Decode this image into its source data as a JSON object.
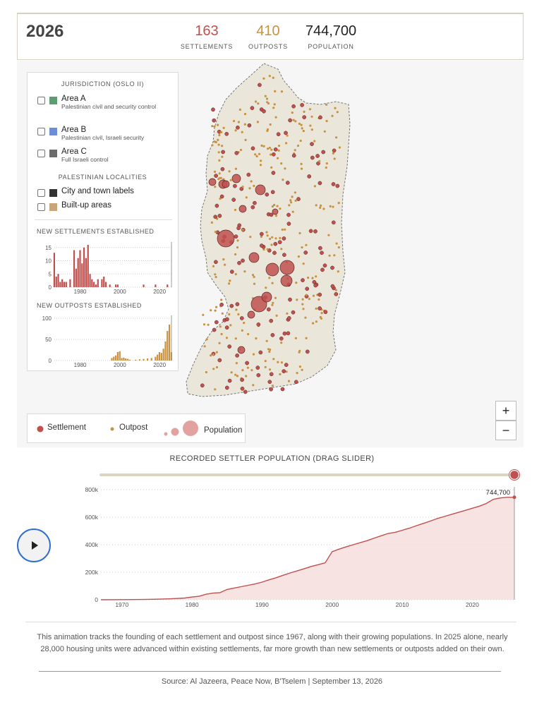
{
  "header": {
    "year": "2026",
    "stats": [
      {
        "value": "163",
        "label": "SETTLEMENTS",
        "color": "#c0504d"
      },
      {
        "value": "410",
        "label": "OUTPOSTS",
        "color": "#c8923f"
      },
      {
        "value": "744,700",
        "label": "POPULATION",
        "color": "#222222"
      }
    ]
  },
  "legend": {
    "jurisdiction_title": "JURISDICTION (OSLO II)",
    "areas": [
      {
        "name": "Area A",
        "desc": "Palestinian civil and security control",
        "color": "#5a9e72"
      },
      {
        "name": "Area B",
        "desc": "Palestinian civil, Israeli security",
        "color": "#6a8fd6"
      },
      {
        "name": "Area C",
        "desc": "Full Israeli control",
        "color": "#6b6b6b"
      }
    ],
    "localities_title": "PALESTINIAN LOCALITIES",
    "localities": [
      {
        "name": "City and town labels",
        "color": "#333333"
      },
      {
        "name": "Built-up areas",
        "color": "#c9a67a"
      }
    ]
  },
  "mini_charts": {
    "settlements": {
      "title": "NEW SETTLEMENTS ESTABLISHED",
      "y_ticks": [
        "15",
        "10",
        "5",
        "0"
      ],
      "x_ticks": [
        "1980",
        "2000",
        "2020"
      ]
    },
    "outposts": {
      "title": "NEW OUTPOSTS ESTABLISHED",
      "y_ticks": [
        "100",
        "50",
        "0"
      ],
      "x_ticks": [
        "1980",
        "2000",
        "2020"
      ]
    }
  },
  "map_controls": {
    "zoom_in": "+",
    "zoom_out": "−"
  },
  "map_key": {
    "settlement": "Settlement",
    "outpost": "Outpost",
    "population": "Population"
  },
  "colors": {
    "settlement": "#c0504d",
    "outpost": "#c8923f",
    "land": "#ebe6da"
  },
  "chart_title": "RECORDED SETTLER POPULATION (DRAG SLIDER)",
  "chart_data": {
    "type": "area",
    "x": [
      1967,
      1970,
      1973,
      1975,
      1977,
      1978,
      1979,
      1980,
      1981,
      1982,
      1983,
      1984,
      1985,
      1986,
      1987,
      1988,
      1989,
      1990,
      1991,
      1992,
      1993,
      1994,
      1995,
      1996,
      1997,
      1998,
      1999,
      2000,
      2001,
      2002,
      2003,
      2004,
      2005,
      2006,
      2007,
      2008,
      2009,
      2010,
      2011,
      2012,
      2013,
      2014,
      2015,
      2016,
      2017,
      2018,
      2019,
      2020,
      2021,
      2022,
      2023,
      2024,
      2025,
      2026
    ],
    "values": [
      0,
      1000,
      2000,
      4000,
      7000,
      10000,
      13000,
      20000,
      25000,
      40000,
      48000,
      52000,
      75000,
      85000,
      95000,
      105000,
      115000,
      128000,
      145000,
      160000,
      178000,
      195000,
      210000,
      225000,
      242000,
      255000,
      268000,
      350000,
      368000,
      385000,
      400000,
      415000,
      430000,
      448000,
      465000,
      482000,
      490000,
      505000,
      520000,
      538000,
      555000,
      572000,
      590000,
      605000,
      620000,
      635000,
      650000,
      665000,
      680000,
      700000,
      730000,
      740000,
      744700,
      744700
    ],
    "ylim": [
      0,
      800000
    ],
    "y_ticks": [
      0,
      200000,
      400000,
      600000,
      800000
    ],
    "y_tick_labels": [
      "0",
      "200k",
      "400k",
      "600k",
      "800k"
    ],
    "x_ticks": [
      1970,
      1980,
      1990,
      2000,
      2010,
      2020
    ],
    "end_label": "744,700",
    "grid": true
  },
  "caption": "This animation tracks the founding of each settlement and outpost since 1967, along with their growing populations. In 2025 alone, nearly 28,000 housing units were advanced within existing settlements, far more growth than new settlements or outposts added on their own.",
  "source": "Source: Al Jazeera, Peace Now, B'Tselem | September 13, 2026"
}
